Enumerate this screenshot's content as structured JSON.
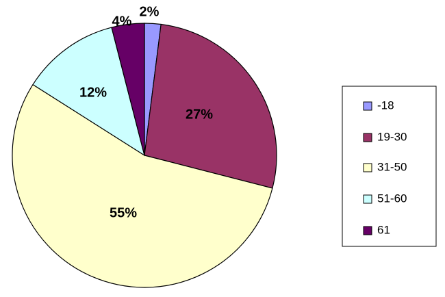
{
  "chart_data": {
    "type": "pie",
    "categories": [
      "-18",
      "19-30",
      "31-50",
      "51-60",
      "61"
    ],
    "values": [
      2,
      27,
      55,
      12,
      4
    ],
    "data_labels": [
      "2%",
      "27%",
      "55%",
      "12%",
      "4%"
    ],
    "colors": [
      "#9999ff",
      "#993366",
      "#ffffcc",
      "#ccffff",
      "#660066"
    ],
    "start_angle_deg": 0,
    "direction": "clockwise",
    "legend": {
      "placement": "right",
      "entries": [
        "-18",
        "19-30",
        "31-50",
        "51-60",
        "61"
      ]
    }
  }
}
